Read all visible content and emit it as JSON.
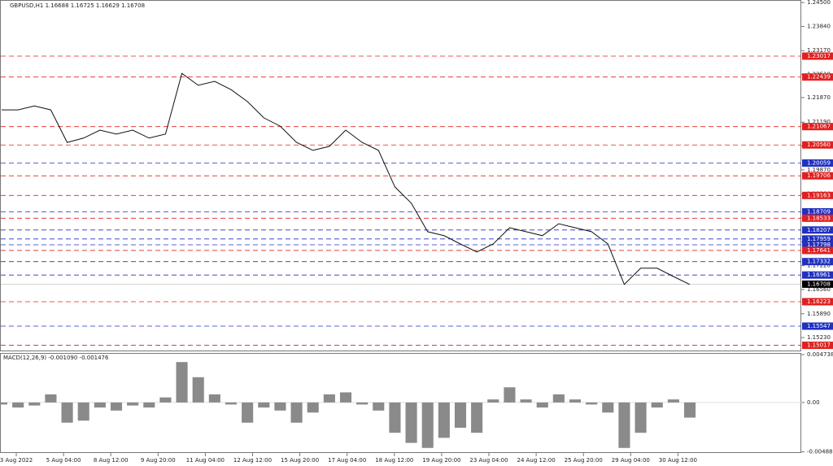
{
  "chart_data": [
    {
      "type": "line",
      "title": "GBPUSD,H1  1.16688 1.16725 1.16629 1.16708",
      "color": "#111",
      "values": [
        1.2153,
        1.2153,
        1.2164,
        1.2153,
        1.2063,
        1.2075,
        1.2097,
        1.2086,
        1.2097,
        1.2075,
        1.2086,
        1.2254,
        1.2221,
        1.2232,
        1.2209,
        1.2176,
        1.2131,
        1.2108,
        1.2063,
        1.2041,
        1.2052,
        1.2097,
        1.2063,
        1.2041,
        1.194,
        1.1895,
        1.1816,
        1.1805,
        1.1782,
        1.176,
        1.1782,
        1.1827,
        1.1816,
        1.1805,
        1.1838,
        1.1827,
        1.1816,
        1.1782,
        1.167,
        1.1715,
        1.1715,
        1.1692,
        1.167
      ],
      "ylim": [
        1.1485,
        1.2457
      ],
      "yticks": [
        {
          "value": 1.245,
          "label": "1.24500"
        },
        {
          "value": 1.2384,
          "label": "1.23840"
        },
        {
          "value": 1.2317,
          "label": "1.23170"
        },
        {
          "value": 1.2251,
          "label": "1.22510"
        },
        {
          "value": 1.2187,
          "label": "1.21870"
        },
        {
          "value": 1.2119,
          "label": "1.21190"
        },
        {
          "value": 1.2053,
          "label": "1.20530"
        },
        {
          "value": 1.1987,
          "label": "1.19870"
        },
        {
          "value": 1.192,
          "label": "1.19200"
        },
        {
          "value": 1.1854,
          "label": "1.18540"
        },
        {
          "value": 1.1788,
          "label": "1.17880"
        },
        {
          "value": 1.1722,
          "label": "1.17220"
        },
        {
          "value": 1.1656,
          "label": "1.16560"
        },
        {
          "value": 1.1589,
          "label": "1.15890"
        },
        {
          "value": 1.1523,
          "label": "1.15230"
        }
      ],
      "levels": [
        {
          "value": 1.23017,
          "label": "1.23017",
          "color": "#e02020"
        },
        {
          "value": 1.22439,
          "label": "1.22439",
          "color": "#e02020"
        },
        {
          "value": 1.21067,
          "label": "1.21067",
          "color": "#e02020"
        },
        {
          "value": 1.2056,
          "label": "1.20560",
          "color": "#e02020"
        },
        {
          "value": 1.20059,
          "label": "1.20059",
          "color": "#2030c0"
        },
        {
          "value": 1.19706,
          "label": "1.19706",
          "color": "#e02020"
        },
        {
          "value": 1.19163,
          "label": "1.19163",
          "color": "#e02020"
        },
        {
          "value": 1.18709,
          "label": "1.18709",
          "color": "#2030c0"
        },
        {
          "value": 1.18533,
          "label": "1.18533",
          "color": "#e02020"
        },
        {
          "value": 1.18207,
          "label": "1.18207",
          "color": "#2030c0"
        },
        {
          "value": 1.17959,
          "label": "1.17959",
          "color": "#2030c0"
        },
        {
          "value": 1.17798,
          "label": "1.17798",
          "color": "#2030c0"
        },
        {
          "value": 1.17641,
          "label": "1.17641",
          "color": "#e02020"
        },
        {
          "value": 1.17332,
          "label": "1.17332",
          "color": "#2030c0"
        },
        {
          "value": 1.16961,
          "label": "1.16961",
          "color": "#2030c0"
        },
        {
          "value": 1.16223,
          "label": "1.16223",
          "color": "#e02020"
        },
        {
          "value": 1.15547,
          "label": "1.15547",
          "color": "#2030c0"
        },
        {
          "value": 1.15017,
          "label": "1.15017",
          "color": "#e02020"
        }
      ],
      "last": {
        "value": 1.16708,
        "label": "1.16708",
        "color": "#000"
      },
      "x_labels": [
        "3 Aug 2022",
        "5 Aug 04:00",
        "8 Aug 12:00",
        "9 Aug 20:00",
        "11 Aug 04:00",
        "12 Aug 12:00",
        "15 Aug 20:00",
        "17 Aug 04:00",
        "18 Aug 12:00",
        "19 Aug 20:00",
        "23 Aug 04:00",
        "24 Aug 12:00",
        "25 Aug 20:00",
        "29 Aug 04:00",
        "30 Aug 12:00"
      ]
    },
    {
      "type": "bar",
      "title": "MACD(12,26,9) -0.001090 -0.001476",
      "color": "#8a8a8a",
      "values": [
        -0.0002,
        -0.0005,
        -0.0003,
        0.0008,
        -0.002,
        -0.0018,
        -0.0005,
        -0.0008,
        -0.0003,
        -0.0005,
        0.0005,
        0.004,
        0.0025,
        0.0008,
        -0.0002,
        -0.002,
        -0.0005,
        -0.0008,
        -0.002,
        -0.001,
        0.0008,
        0.001,
        -0.0002,
        -0.0008,
        -0.003,
        -0.004,
        -0.0045,
        -0.0035,
        -0.0025,
        -0.003,
        0.0003,
        0.0015,
        0.0003,
        -0.0005,
        0.0008,
        0.0003,
        -0.0002,
        -0.001,
        -0.0045,
        -0.003,
        -0.0005,
        0.0003,
        -0.0015
      ],
      "ylim": [
        -0.005,
        0.0049
      ],
      "yticks": [
        0.004738,
        {
          "value": 0,
          "label": "0.00"
        },
        -0.004889
      ]
    }
  ]
}
